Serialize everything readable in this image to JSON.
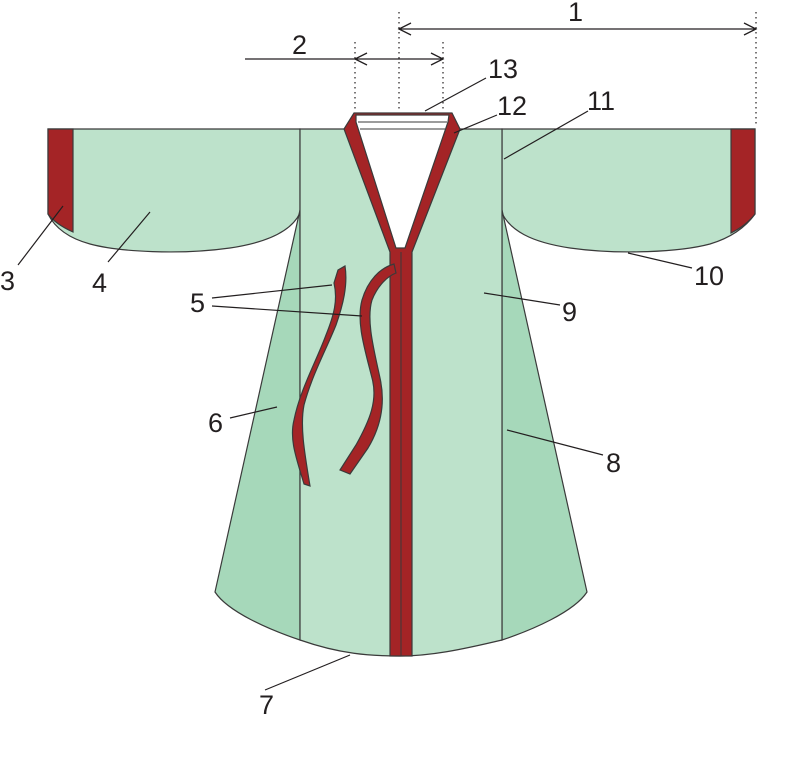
{
  "colors": {
    "body": "#bde2cb",
    "gore": "#a6d8ba",
    "trim": "#a42426",
    "collar": "#ffffff",
    "line": "#231f20"
  },
  "labels": {
    "l1": "1",
    "l2": "2",
    "l3": "3",
    "l4": "4",
    "l5": "5",
    "l6": "6",
    "l7": "7",
    "l8": "8",
    "l9": "9",
    "l10": "10",
    "l11": "11",
    "l12": "12",
    "l13": "13"
  }
}
